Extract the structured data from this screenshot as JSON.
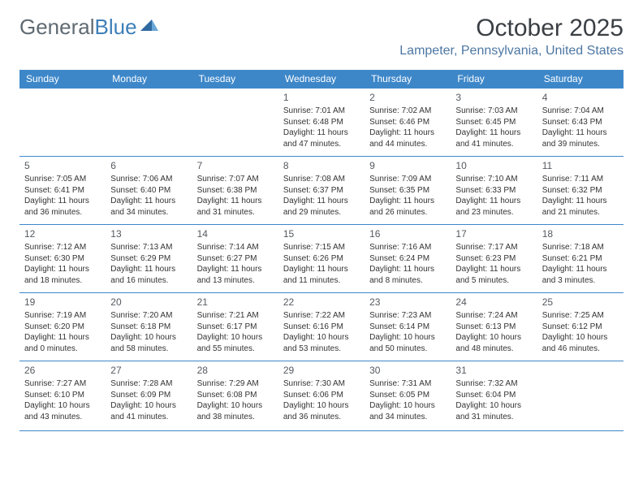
{
  "logo": {
    "text1": "General",
    "text2": "Blue"
  },
  "title": "October 2025",
  "location": "Lampeter, Pennsylvania, United States",
  "colors": {
    "header_bg": "#3d87c9",
    "header_text": "#ffffff",
    "row_border": "#3d87c9",
    "location_text": "#4d77a3",
    "logo_gray": "#5f6a72",
    "logo_blue": "#3d7fb8",
    "body_text": "#333333",
    "daynum_text": "#555a60",
    "page_bg": "#ffffff"
  },
  "typography": {
    "month_title_size": 30,
    "location_size": 16,
    "weekday_size": 12,
    "daynum_size": 12,
    "cell_size": 10
  },
  "weekdays": [
    "Sunday",
    "Monday",
    "Tuesday",
    "Wednesday",
    "Thursday",
    "Friday",
    "Saturday"
  ],
  "weeks": [
    [
      null,
      null,
      null,
      {
        "d": "1",
        "sr": "7:01 AM",
        "ss": "6:48 PM",
        "dl": "11 hours and 47 minutes."
      },
      {
        "d": "2",
        "sr": "7:02 AM",
        "ss": "6:46 PM",
        "dl": "11 hours and 44 minutes."
      },
      {
        "d": "3",
        "sr": "7:03 AM",
        "ss": "6:45 PM",
        "dl": "11 hours and 41 minutes."
      },
      {
        "d": "4",
        "sr": "7:04 AM",
        "ss": "6:43 PM",
        "dl": "11 hours and 39 minutes."
      }
    ],
    [
      {
        "d": "5",
        "sr": "7:05 AM",
        "ss": "6:41 PM",
        "dl": "11 hours and 36 minutes."
      },
      {
        "d": "6",
        "sr": "7:06 AM",
        "ss": "6:40 PM",
        "dl": "11 hours and 34 minutes."
      },
      {
        "d": "7",
        "sr": "7:07 AM",
        "ss": "6:38 PM",
        "dl": "11 hours and 31 minutes."
      },
      {
        "d": "8",
        "sr": "7:08 AM",
        "ss": "6:37 PM",
        "dl": "11 hours and 29 minutes."
      },
      {
        "d": "9",
        "sr": "7:09 AM",
        "ss": "6:35 PM",
        "dl": "11 hours and 26 minutes."
      },
      {
        "d": "10",
        "sr": "7:10 AM",
        "ss": "6:33 PM",
        "dl": "11 hours and 23 minutes."
      },
      {
        "d": "11",
        "sr": "7:11 AM",
        "ss": "6:32 PM",
        "dl": "11 hours and 21 minutes."
      }
    ],
    [
      {
        "d": "12",
        "sr": "7:12 AM",
        "ss": "6:30 PM",
        "dl": "11 hours and 18 minutes."
      },
      {
        "d": "13",
        "sr": "7:13 AM",
        "ss": "6:29 PM",
        "dl": "11 hours and 16 minutes."
      },
      {
        "d": "14",
        "sr": "7:14 AM",
        "ss": "6:27 PM",
        "dl": "11 hours and 13 minutes."
      },
      {
        "d": "15",
        "sr": "7:15 AM",
        "ss": "6:26 PM",
        "dl": "11 hours and 11 minutes."
      },
      {
        "d": "16",
        "sr": "7:16 AM",
        "ss": "6:24 PM",
        "dl": "11 hours and 8 minutes."
      },
      {
        "d": "17",
        "sr": "7:17 AM",
        "ss": "6:23 PM",
        "dl": "11 hours and 5 minutes."
      },
      {
        "d": "18",
        "sr": "7:18 AM",
        "ss": "6:21 PM",
        "dl": "11 hours and 3 minutes."
      }
    ],
    [
      {
        "d": "19",
        "sr": "7:19 AM",
        "ss": "6:20 PM",
        "dl": "11 hours and 0 minutes."
      },
      {
        "d": "20",
        "sr": "7:20 AM",
        "ss": "6:18 PM",
        "dl": "10 hours and 58 minutes."
      },
      {
        "d": "21",
        "sr": "7:21 AM",
        "ss": "6:17 PM",
        "dl": "10 hours and 55 minutes."
      },
      {
        "d": "22",
        "sr": "7:22 AM",
        "ss": "6:16 PM",
        "dl": "10 hours and 53 minutes."
      },
      {
        "d": "23",
        "sr": "7:23 AM",
        "ss": "6:14 PM",
        "dl": "10 hours and 50 minutes."
      },
      {
        "d": "24",
        "sr": "7:24 AM",
        "ss": "6:13 PM",
        "dl": "10 hours and 48 minutes."
      },
      {
        "d": "25",
        "sr": "7:25 AM",
        "ss": "6:12 PM",
        "dl": "10 hours and 46 minutes."
      }
    ],
    [
      {
        "d": "26",
        "sr": "7:27 AM",
        "ss": "6:10 PM",
        "dl": "10 hours and 43 minutes."
      },
      {
        "d": "27",
        "sr": "7:28 AM",
        "ss": "6:09 PM",
        "dl": "10 hours and 41 minutes."
      },
      {
        "d": "28",
        "sr": "7:29 AM",
        "ss": "6:08 PM",
        "dl": "10 hours and 38 minutes."
      },
      {
        "d": "29",
        "sr": "7:30 AM",
        "ss": "6:06 PM",
        "dl": "10 hours and 36 minutes."
      },
      {
        "d": "30",
        "sr": "7:31 AM",
        "ss": "6:05 PM",
        "dl": "10 hours and 34 minutes."
      },
      {
        "d": "31",
        "sr": "7:32 AM",
        "ss": "6:04 PM",
        "dl": "10 hours and 31 minutes."
      },
      null
    ]
  ],
  "labels": {
    "sunrise": "Sunrise:",
    "sunset": "Sunset:",
    "daylight": "Daylight:"
  }
}
